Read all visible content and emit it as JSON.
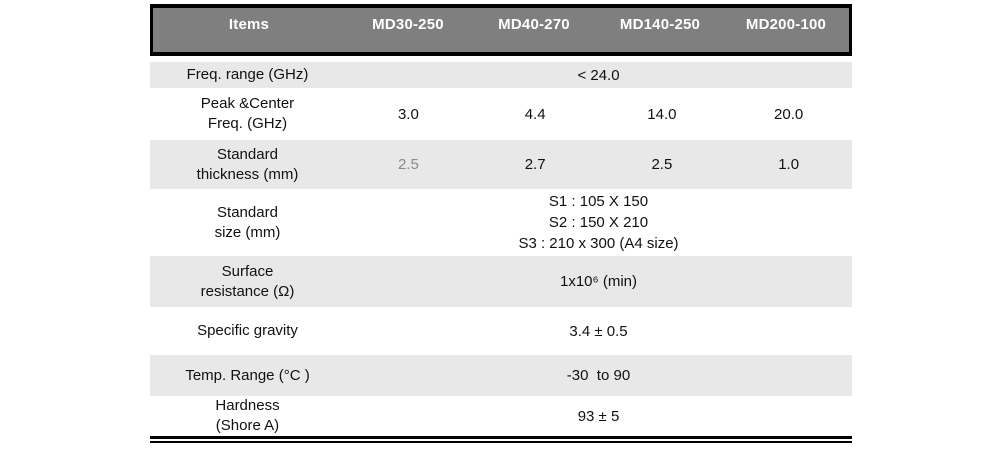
{
  "colors": {
    "page_bg": "#ffffff",
    "header_bg": "#7f7f7f",
    "header_text": "#ffffff",
    "stripe": "#e8e8e8",
    "text": "#111111",
    "muted": "#8a8a8a",
    "border": "#000000"
  },
  "table": {
    "columns": [
      "Items",
      "MD30-250",
      "MD40-270",
      "MD140-250",
      "MD200-100"
    ],
    "rows": [
      {
        "label": "Freq. range (GHz)",
        "span_value": "< 24.0"
      },
      {
        "label": "Peak &Center\nFreq. (GHz)",
        "values": [
          "3.0",
          "4.4",
          "14.0",
          "20.0"
        ]
      },
      {
        "label": "Standard\nthickness (mm)",
        "values": [
          "2.5",
          "2.7",
          "2.5",
          "1.0"
        ]
      },
      {
        "label": "Standard\nsize (mm)",
        "span_value": "S1 : 105 X 150\nS2 : 150 X 210\nS3 : 210 x 300 (A4 size)"
      },
      {
        "label": "Surface\nresistance (Ω)",
        "span_value": "1x10⁶ (min)"
      },
      {
        "label": "Specific gravity",
        "span_value": "3.4 ± 0.5"
      },
      {
        "label": "Temp. Range (°C )",
        "span_value": "-30  to 90"
      },
      {
        "label": "Hardness\n(Shore A)",
        "span_value": "93 ± 5"
      }
    ]
  }
}
